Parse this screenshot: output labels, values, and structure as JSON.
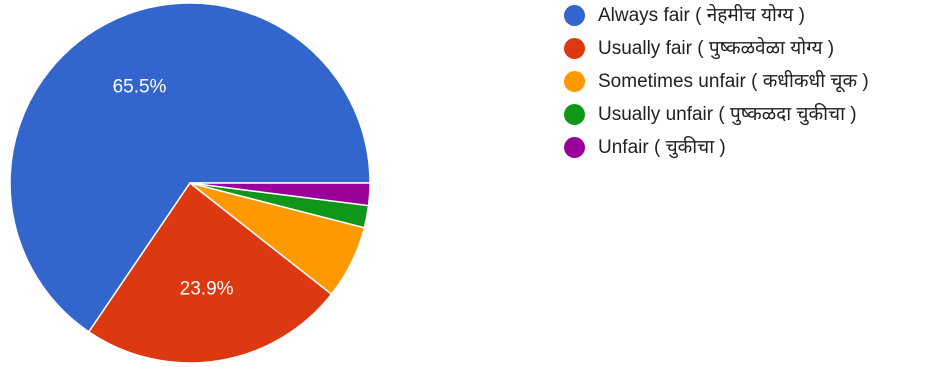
{
  "chart_data": {
    "type": "pie",
    "title": "",
    "series": [
      {
        "name": "Always fair ( नेहमीच योग्य )",
        "value": 65.5,
        "color": "#3366cc",
        "label": "65.5%"
      },
      {
        "name": "Usually fair ( पुष्कळवेळा योग्य )",
        "value": 23.9,
        "color": "#dc3912",
        "label": "23.9%"
      },
      {
        "name": "Sometimes unfair ( कधीकधी चूक )",
        "value": 6.6,
        "color": "#ff9900",
        "label": ""
      },
      {
        "name": "Usually unfair ( पुष्कळदा चुकीचा )",
        "value": 2.0,
        "color": "#109618",
        "label": ""
      },
      {
        "name": "Unfair ( चुकीचा )",
        "value": 2.0,
        "color": "#990099",
        "label": ""
      }
    ],
    "legend_position": "right"
  }
}
